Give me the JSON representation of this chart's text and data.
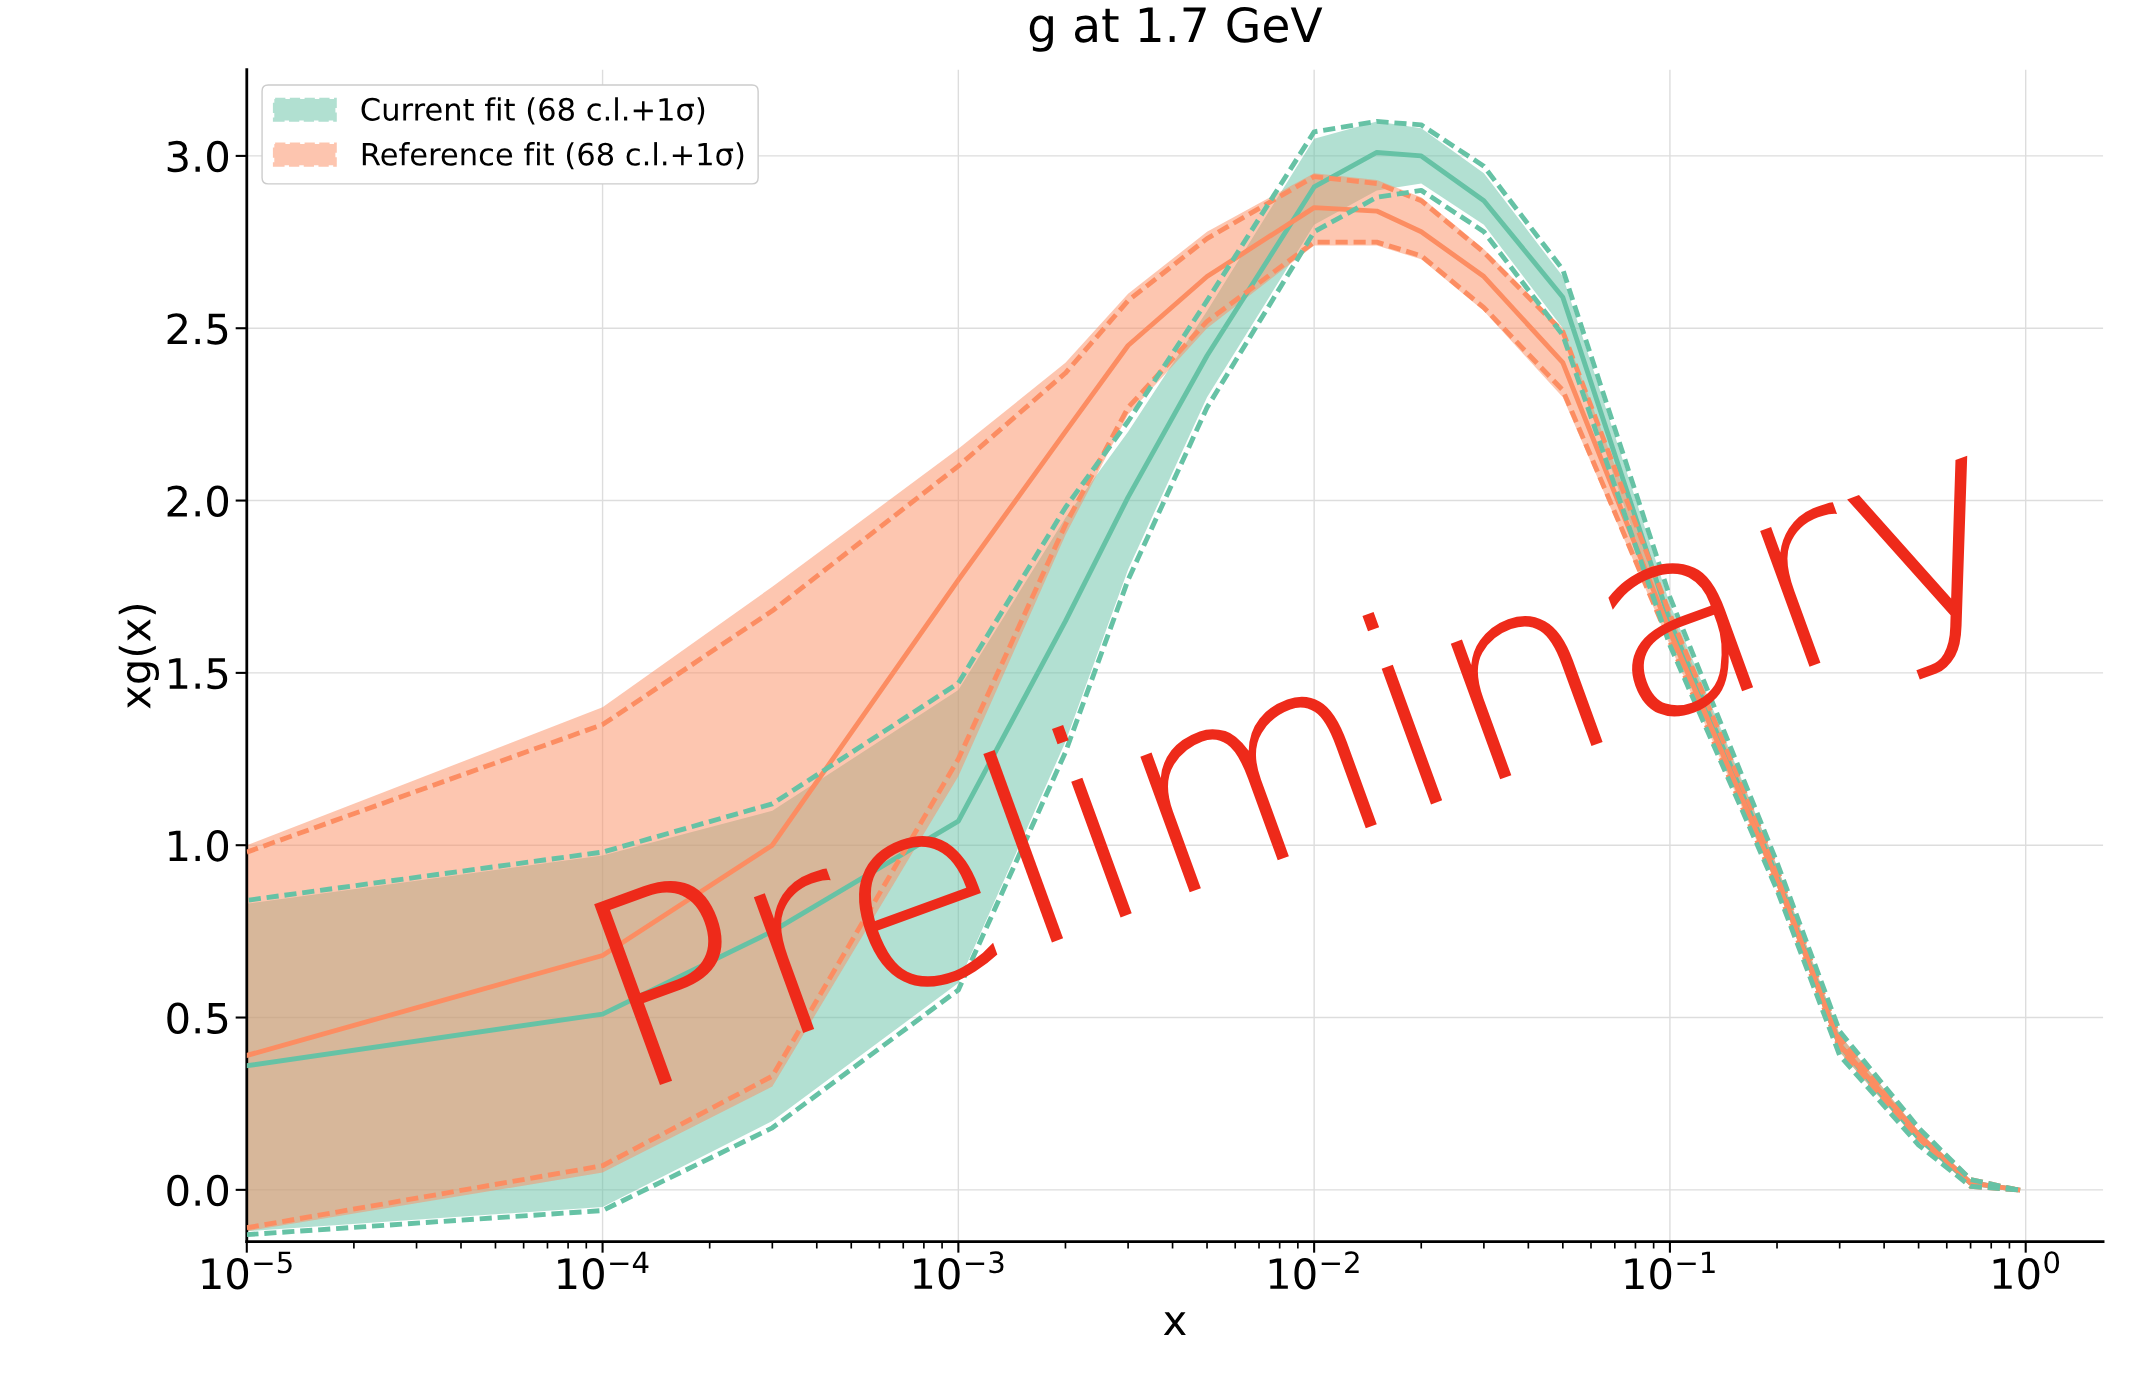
{
  "chart_data": {
    "type": "line",
    "title": "g at 1.7 GeV",
    "xlabel": "x",
    "ylabel": "xg(x)",
    "x": [
      1e-05,
      0.0001,
      0.0003,
      0.001,
      0.002,
      0.003,
      0.005,
      0.01,
      0.015,
      0.02,
      0.03,
      0.05,
      0.1,
      0.2,
      0.3,
      0.5,
      0.7,
      0.95
    ],
    "series": [
      {
        "name": "Current fit (68 c.l.+1σ)",
        "color": "#66c2a5",
        "values": [
          0.36,
          0.51,
          0.75,
          1.07,
          1.65,
          2.01,
          2.42,
          2.91,
          3.01,
          3.0,
          2.87,
          2.59,
          1.65,
          0.91,
          0.42,
          0.15,
          0.02,
          0.0
        ],
        "lower": [
          -0.12,
          -0.05,
          0.2,
          0.6,
          1.3,
          1.8,
          2.3,
          2.8,
          2.9,
          2.92,
          2.8,
          2.5,
          1.6,
          0.88,
          0.4,
          0.14,
          0.01,
          0.0
        ],
        "upper": [
          0.83,
          0.97,
          1.1,
          1.45,
          1.95,
          2.2,
          2.55,
          3.05,
          3.1,
          3.08,
          2.95,
          2.65,
          1.7,
          0.94,
          0.45,
          0.17,
          0.03,
          0.0
        ]
      },
      {
        "color": "#66c2a5",
        "line_style": "dashed",
        "values": [
          -0.13,
          -0.06,
          0.18,
          0.58,
          1.27,
          1.77,
          2.27,
          2.78,
          2.88,
          2.9,
          2.78,
          2.48,
          1.58,
          0.87,
          0.39,
          0.13,
          0.01,
          0.0
        ]
      },
      {
        "color": "#66c2a5",
        "line_style": "dashed",
        "values": [
          0.84,
          0.98,
          1.12,
          1.47,
          1.98,
          2.23,
          2.58,
          3.07,
          3.1,
          3.09,
          2.97,
          2.67,
          1.72,
          0.95,
          0.46,
          0.18,
          0.03,
          0.0
        ]
      },
      {
        "name": "Reference fit (68 c.l.+1σ)",
        "color": "#fc8d62",
        "values": [
          0.39,
          0.68,
          1.0,
          1.77,
          2.2,
          2.45,
          2.65,
          2.85,
          2.84,
          2.78,
          2.65,
          2.4,
          1.62,
          0.9,
          0.42,
          0.16,
          0.02,
          0.0
        ],
        "lower": [
          -0.12,
          0.05,
          0.3,
          1.2,
          1.9,
          2.25,
          2.5,
          2.74,
          2.74,
          2.7,
          2.55,
          2.3,
          1.58,
          0.88,
          0.4,
          0.14,
          0.01,
          0.0
        ],
        "upper": [
          1.0,
          1.4,
          1.75,
          2.15,
          2.4,
          2.6,
          2.78,
          2.95,
          2.93,
          2.88,
          2.73,
          2.5,
          1.68,
          0.94,
          0.45,
          0.17,
          0.03,
          0.0
        ]
      },
      {
        "color": "#fc8d62",
        "line_style": "dashed",
        "values": [
          -0.11,
          0.07,
          0.33,
          1.25,
          1.93,
          2.27,
          2.52,
          2.75,
          2.75,
          2.71,
          2.56,
          2.32,
          1.59,
          0.88,
          0.41,
          0.15,
          0.01,
          0.0
        ]
      },
      {
        "color": "#fc8d62",
        "line_style": "dashed",
        "values": [
          0.98,
          1.35,
          1.68,
          2.1,
          2.37,
          2.58,
          2.76,
          2.94,
          2.92,
          2.87,
          2.72,
          2.49,
          1.67,
          0.93,
          0.44,
          0.17,
          0.03,
          0.0
        ]
      }
    ],
    "log": "x",
    "xlim": [
      1e-05,
      1.65
    ],
    "ylim": [
      -0.15,
      3.25
    ],
    "xticks": [
      {
        "value": 1e-05,
        "label": "10$^{−5}$"
      },
      {
        "value": 0.0001,
        "label": "10$^{−4}$"
      },
      {
        "value": 0.001,
        "label": "10$^{−3}$"
      },
      {
        "value": 0.01,
        "label": "10$^{−2}$"
      },
      {
        "value": 0.1,
        "label": "10$^{−1}$"
      },
      {
        "value": 1,
        "label": "10$^{0}$"
      }
    ],
    "yticks": [
      {
        "value": 0,
        "label": "0.0"
      },
      {
        "value": 0.5,
        "label": "0.5"
      },
      {
        "value": 1,
        "label": "1.0"
      },
      {
        "value": 1.5,
        "label": "1.5"
      },
      {
        "value": 2,
        "label": "2.0"
      },
      {
        "value": 2.5,
        "label": "2.5"
      },
      {
        "value": 3,
        "label": "3.0"
      }
    ],
    "grid": true,
    "legend": "top left",
    "annotations": [
      "Preliminary"
    ]
  }
}
